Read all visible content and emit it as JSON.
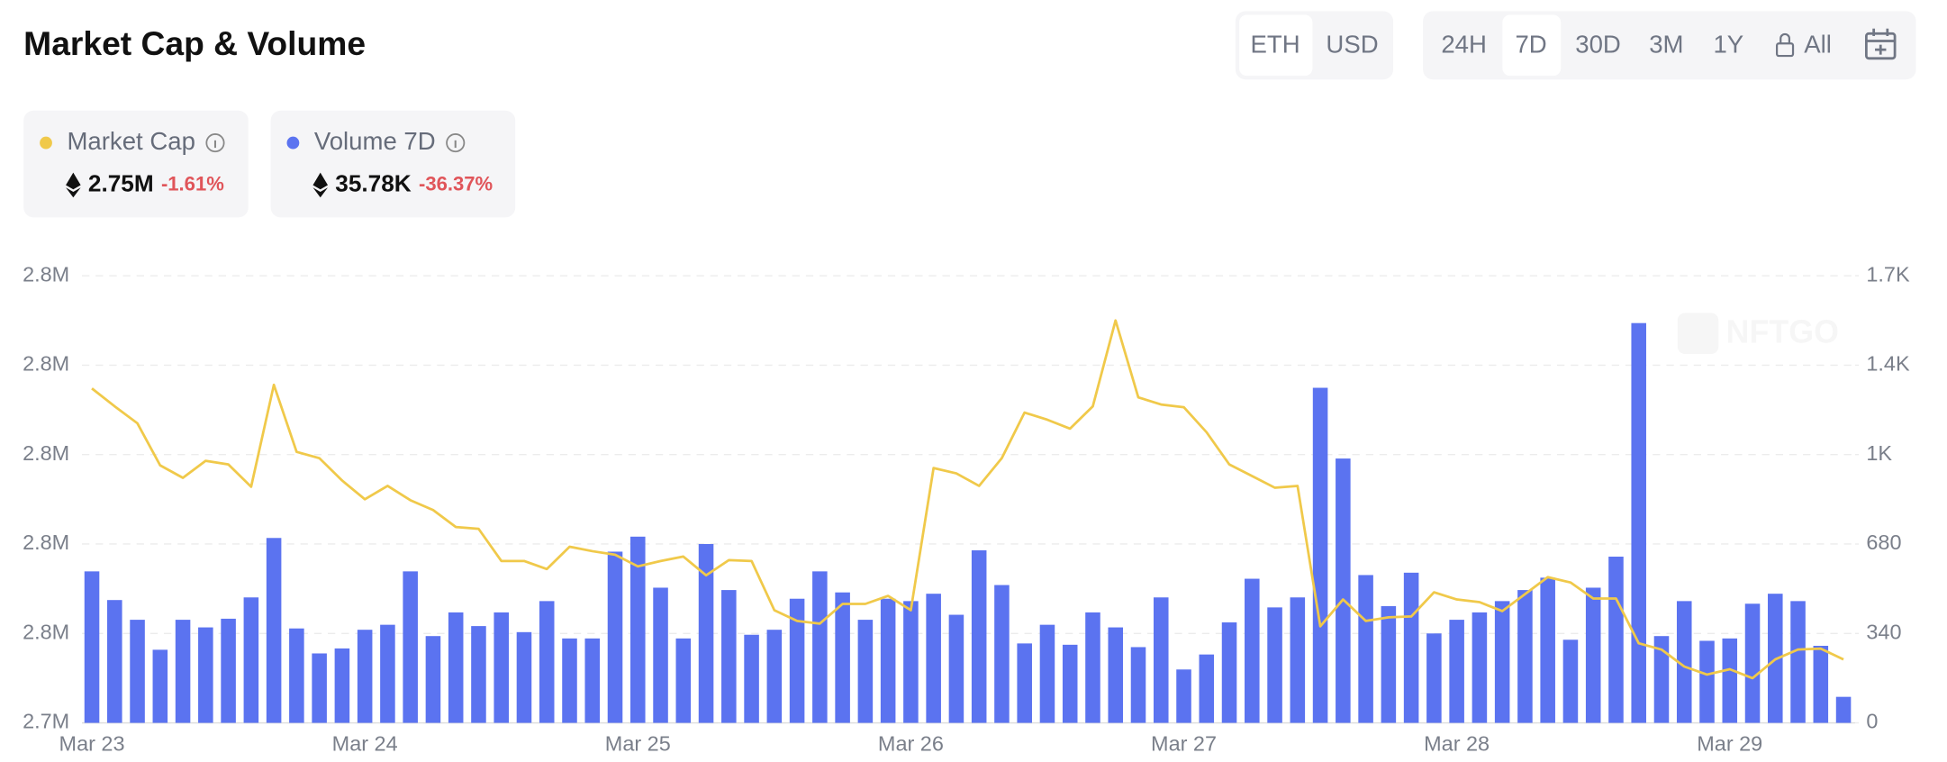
{
  "header": {
    "title": "Market Cap & Volume",
    "currency_options": [
      "ETH",
      "USD"
    ],
    "range_options": [
      "24H",
      "7D",
      "30D",
      "3M",
      "1Y",
      "All"
    ]
  },
  "summary": [
    {
      "value": "2.75M",
      "change": "-1.61%"
    },
    {
      "value": "35.78K",
      "change": "-36.37%"
    }
  ],
  "watermark": "NFTGO",
  "chart_data": {
    "type": "combo",
    "x": [
      "Mar 23",
      null,
      null,
      null,
      null,
      null,
      null,
      null,
      null,
      null,
      null,
      null,
      "Mar 24",
      null,
      null,
      null,
      null,
      null,
      null,
      null,
      null,
      null,
      null,
      null,
      "Mar 25",
      null,
      null,
      null,
      null,
      null,
      null,
      null,
      null,
      null,
      null,
      null,
      "Mar 26",
      null,
      null,
      null,
      null,
      null,
      null,
      null,
      null,
      null,
      null,
      null,
      "Mar 27",
      null,
      null,
      null,
      null,
      null,
      null,
      null,
      null,
      null,
      null,
      null,
      "Mar 28",
      null,
      null,
      null,
      null,
      null,
      null,
      null,
      null,
      null,
      null,
      null,
      "Mar 29",
      null,
      null,
      null,
      null,
      null
    ],
    "series": [
      {
        "name": "Market Cap",
        "type": "line",
        "color": "#f0c94a",
        "axis": "y",
        "values": [
          2777400,
          2775400,
          2773500,
          2768800,
          2767400,
          2769300,
          2768900,
          2766400,
          2777800,
          2770300,
          2769600,
          2767100,
          2765000,
          2766500,
          2764900,
          2763800,
          2761900,
          2761700,
          2758100,
          2758100,
          2757200,
          2759700,
          2759200,
          2758800,
          2757500,
          2758100,
          2758600,
          2756500,
          2758200,
          2758100,
          2752600,
          2751400,
          2751100,
          2753300,
          2753300,
          2754200,
          2752600,
          2768500,
          2767900,
          2766500,
          2769600,
          2774700,
          2773900,
          2772900,
          2775400,
          2785000,
          2776400,
          2775600,
          2775300,
          2772500,
          2768900,
          2767600,
          2766300,
          2766500,
          2750800,
          2753800,
          2751400,
          2751800,
          2751900,
          2754600,
          2753800,
          2753500,
          2752500,
          2754400,
          2756300,
          2755700,
          2753900,
          2753900,
          2748900,
          2748200,
          2746300,
          2745400,
          2746000,
          2745000,
          2747100,
          2748200,
          2748300,
          2747100
        ]
      },
      {
        "name": "Volume 7D",
        "type": "bar",
        "color": "#5b73f0",
        "axis": "y2",
        "values": [
          576,
          467,
          392,
          278,
          392,
          363,
          396,
          477,
          703,
          359,
          264,
          283,
          354,
          373,
          576,
          330,
          420,
          368,
          420,
          345,
          463,
          321,
          321,
          651,
          708,
          514,
          321,
          680,
          505,
          335,
          354,
          472,
          576,
          496,
          392,
          472,
          463,
          491,
          411,
          656,
          524,
          302,
          373,
          297,
          420,
          363,
          288,
          477,
          203,
          260,
          382,
          548,
          439,
          477,
          1274,
          1005,
          562,
          444,
          571,
          340,
          392,
          420,
          463,
          505,
          552,
          316,
          514,
          632,
          1520,
          330,
          463,
          312,
          321,
          453,
          491,
          463,
          293,
          99
        ]
      }
    ],
    "ylim": [
      2740000,
      2790000
    ],
    "yticks": [
      {
        "value": 2740000,
        "label": "2.7M"
      },
      {
        "value": 2750000,
        "label": "2.8M"
      },
      {
        "value": 2760000,
        "label": "2.8M"
      },
      {
        "value": 2770000,
        "label": "2.8M"
      },
      {
        "value": 2780000,
        "label": "2.8M"
      },
      {
        "value": 2790000,
        "label": "2.8M"
      }
    ],
    "y2lim": [
      0,
      1700
    ],
    "y2ticks": [
      0,
      340,
      680,
      {
        "value": 1020,
        "label": "1K"
      },
      {
        "value": 1360,
        "label": "1.4K"
      },
      {
        "value": 1700,
        "label": "1.7K"
      }
    ],
    "grid": true
  }
}
